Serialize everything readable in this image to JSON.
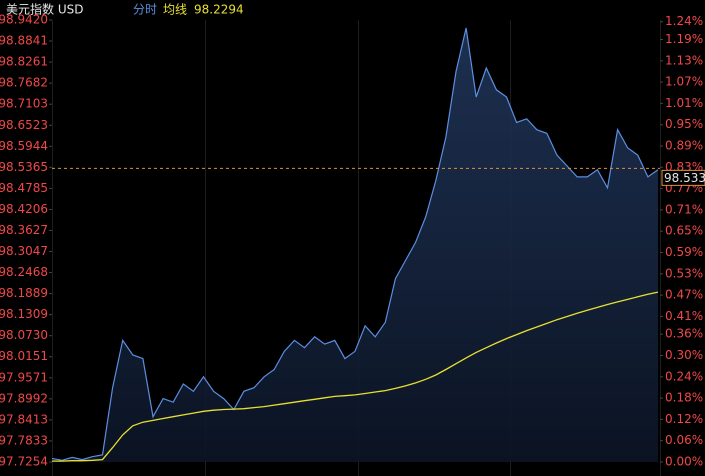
{
  "chart_data": {
    "type": "line",
    "title": "美元指数 USD",
    "mode_label": "分时",
    "average_label": "均线",
    "average_value": {
      "value": 98.2294,
      "label": "98.2294"
    },
    "last_price": 98.5336,
    "ylim": [
      97.7254,
      98.942
    ],
    "yticks": [
      {
        "value": 98.942,
        "label": "98.9420"
      },
      {
        "value": 98.8841,
        "label": "98.8841"
      },
      {
        "value": 98.8261,
        "label": "98.8261"
      },
      {
        "value": 98.7682,
        "label": "98.7682"
      },
      {
        "value": 98.7103,
        "label": "98.7103"
      },
      {
        "value": 98.6523,
        "label": "98.6523"
      },
      {
        "value": 98.5944,
        "label": "98.5944"
      },
      {
        "value": 98.5365,
        "label": "98.5365"
      },
      {
        "value": 98.4785,
        "label": "98.4785"
      },
      {
        "value": 98.4206,
        "label": "98.4206"
      },
      {
        "value": 98.3627,
        "label": "98.3627"
      },
      {
        "value": 98.3047,
        "label": "98.3047"
      },
      {
        "value": 98.2468,
        "label": "98.2468"
      },
      {
        "value": 98.1889,
        "label": "98.1889"
      },
      {
        "value": 98.1309,
        "label": "98.1309"
      },
      {
        "value": 98.073,
        "label": "98.0730"
      },
      {
        "value": 98.0151,
        "label": "98.0151"
      },
      {
        "value": 97.9571,
        "label": "97.9571"
      },
      {
        "value": 97.8992,
        "label": "97.8992"
      },
      {
        "value": 97.8413,
        "label": "97.8413"
      },
      {
        "value": 97.7833,
        "label": "97.7833"
      },
      {
        "value": 97.7254,
        "label": "97.7254"
      }
    ],
    "y2lim": [
      0,
      1.2449
    ],
    "y2ticks": [
      {
        "value": 1.24,
        "label": "1.24%"
      },
      {
        "value": 1.19,
        "label": "1.19%"
      },
      {
        "value": 1.13,
        "label": "1.13%"
      },
      {
        "value": 1.07,
        "label": "1.07%"
      },
      {
        "value": 1.01,
        "label": "1.01%"
      },
      {
        "value": 0.95,
        "label": "0.95%"
      },
      {
        "value": 0.89,
        "label": "0.89%"
      },
      {
        "value": 0.83,
        "label": "0.83%"
      },
      {
        "value": 0.77,
        "label": "0.77%"
      },
      {
        "value": 0.71,
        "label": "0.71%"
      },
      {
        "value": 0.65,
        "label": "0.65%"
      },
      {
        "value": 0.59,
        "label": "0.59%"
      },
      {
        "value": 0.53,
        "label": "0.53%"
      },
      {
        "value": 0.47,
        "label": "0.47%"
      },
      {
        "value": 0.41,
        "label": "0.41%"
      },
      {
        "value": 0.36,
        "label": "0.36%"
      },
      {
        "value": 0.3,
        "label": "0.30%"
      },
      {
        "value": 0.24,
        "label": "0.24%"
      },
      {
        "value": 0.18,
        "label": "0.18%"
      },
      {
        "value": 0.12,
        "label": "0.12%"
      },
      {
        "value": 0.06,
        "label": "0.06%"
      },
      {
        "value": 0,
        "label": "0.00%"
      }
    ],
    "series": [
      {
        "color": "#5b8fe0",
        "values": [
          97.735,
          97.73,
          97.738,
          97.732,
          97.74,
          97.745,
          97.93,
          98.06,
          98.02,
          98.01,
          97.85,
          97.9,
          97.89,
          97.94,
          97.92,
          97.96,
          97.92,
          97.9,
          97.87,
          97.92,
          97.93,
          97.96,
          97.98,
          98.03,
          98.06,
          98.04,
          98.07,
          98.05,
          98.06,
          98.01,
          98.03,
          98.1,
          98.07,
          98.11,
          98.23,
          98.28,
          98.33,
          98.4,
          98.5,
          98.62,
          98.8,
          98.92,
          98.73,
          98.81,
          98.75,
          98.73,
          98.66,
          98.67,
          98.64,
          98.63,
          98.57,
          98.54,
          98.51,
          98.51,
          98.53,
          98.48,
          98.64,
          98.59,
          98.57,
          98.51,
          98.53
        ]
      },
      {
        "color": "#e8e030",
        "values": [
          97.728,
          97.728,
          97.729,
          97.729,
          97.73,
          97.732,
          97.765,
          97.8,
          97.825,
          97.835,
          97.84,
          97.845,
          97.85,
          97.855,
          97.86,
          97.865,
          97.868,
          97.87,
          97.871,
          97.872,
          97.875,
          97.878,
          97.882,
          97.886,
          97.89,
          97.894,
          97.898,
          97.902,
          97.906,
          97.908,
          97.91,
          97.914,
          97.918,
          97.922,
          97.928,
          97.935,
          97.943,
          97.953,
          97.965,
          97.98,
          97.996,
          98.012,
          98.027,
          98.04,
          98.053,
          98.065,
          98.076,
          98.087,
          98.097,
          98.107,
          98.117,
          98.126,
          98.135,
          98.143,
          98.151,
          98.159,
          98.166,
          98.173,
          98.18,
          98.187,
          98.193
        ]
      }
    ]
  }
}
